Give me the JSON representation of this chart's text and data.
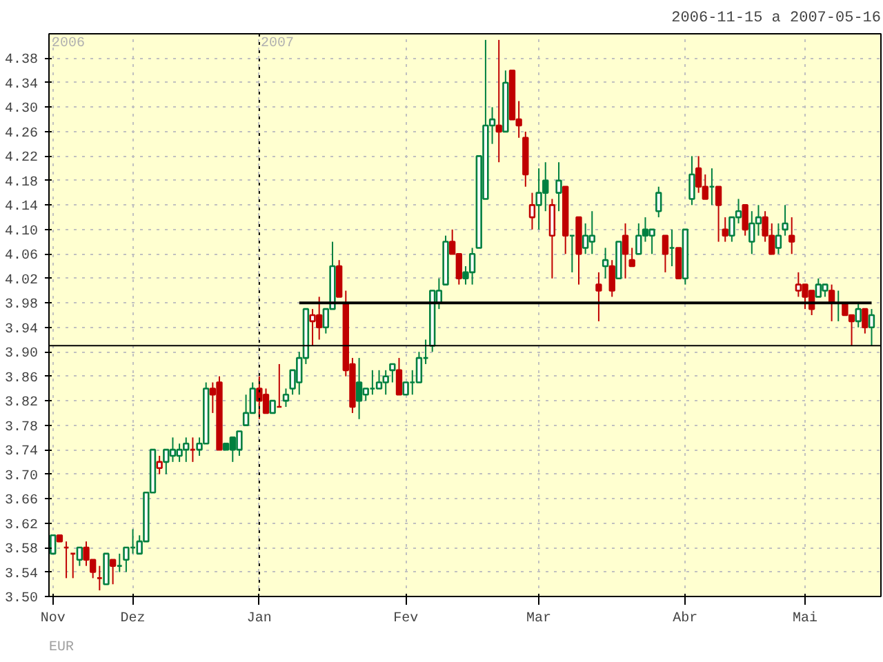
{
  "chart_data": {
    "type": "candlestick",
    "subtitle": "2006-11-15 a 2007-05-16",
    "categories": [
      "Nov",
      null,
      null,
      null,
      null,
      null,
      null,
      null,
      null,
      null,
      null,
      null,
      "Dez",
      null,
      null,
      null,
      null,
      null,
      null,
      null,
      null,
      null,
      null,
      null,
      null,
      null,
      null,
      null,
      null,
      null,
      null,
      "Jan",
      null,
      null,
      null,
      null,
      null,
      null,
      null,
      null,
      null,
      null,
      null,
      null,
      null,
      null,
      null,
      null,
      null,
      null,
      null,
      null,
      null,
      "Fev",
      null,
      null,
      null,
      null,
      null,
      null,
      null,
      null,
      null,
      null,
      null,
      null,
      null,
      null,
      null,
      null,
      null,
      null,
      null,
      "Mar",
      null,
      null,
      null,
      null,
      null,
      null,
      null,
      null,
      null,
      null,
      null,
      null,
      null,
      null,
      null,
      null,
      null,
      null,
      null,
      null,
      null,
      "Abr",
      null,
      null,
      null,
      null,
      null,
      null,
      null,
      null,
      null,
      null,
      null,
      null,
      null,
      null,
      null,
      null,
      null,
      "Mai",
      null,
      null,
      null,
      null,
      null,
      null,
      null,
      null,
      null,
      null
    ],
    "ohlc": [
      [
        3.57,
        3.6,
        3.57,
        3.6
      ],
      [
        3.6,
        3.6,
        3.59,
        3.59
      ],
      [
        3.58,
        3.59,
        3.53,
        3.58
      ],
      [
        3.57,
        3.57,
        3.53,
        3.57
      ],
      [
        3.56,
        3.58,
        3.55,
        3.58
      ],
      [
        3.58,
        3.59,
        3.55,
        3.56
      ],
      [
        3.56,
        3.56,
        3.53,
        3.54
      ],
      [
        3.53,
        3.55,
        3.51,
        3.53
      ],
      [
        3.52,
        3.57,
        3.52,
        3.57
      ],
      [
        3.56,
        3.56,
        3.52,
        3.55
      ],
      [
        3.55,
        3.57,
        3.54,
        3.55
      ],
      [
        3.56,
        3.58,
        3.54,
        3.58
      ],
      [
        3.58,
        3.61,
        3.57,
        3.58
      ],
      [
        3.57,
        3.6,
        3.57,
        3.59
      ],
      [
        3.59,
        3.67,
        3.59,
        3.67
      ],
      [
        3.67,
        3.74,
        3.67,
        3.74
      ],
      [
        3.71,
        3.73,
        3.7,
        3.72
      ],
      [
        3.72,
        3.74,
        3.7,
        3.74
      ],
      [
        3.73,
        3.76,
        3.72,
        3.74
      ],
      [
        3.73,
        3.75,
        3.72,
        3.74
      ],
      [
        3.74,
        3.76,
        3.72,
        3.75
      ],
      [
        3.74,
        3.76,
        3.72,
        3.74
      ],
      [
        3.74,
        3.76,
        3.73,
        3.75
      ],
      [
        3.75,
        3.85,
        3.75,
        3.84
      ],
      [
        3.84,
        3.85,
        3.8,
        3.83
      ],
      [
        3.85,
        3.86,
        3.74,
        3.74
      ],
      [
        3.75,
        3.75,
        3.74,
        3.74
      ],
      [
        3.76,
        3.76,
        3.72,
        3.74
      ],
      [
        3.74,
        3.77,
        3.73,
        3.77
      ],
      [
        3.78,
        3.83,
        3.78,
        3.8
      ],
      [
        3.8,
        3.85,
        3.8,
        3.84
      ],
      [
        3.84,
        3.86,
        3.79,
        3.82
      ],
      [
        3.83,
        3.84,
        3.8,
        3.8
      ],
      [
        3.8,
        3.82,
        3.8,
        3.82
      ],
      [
        3.81,
        3.88,
        3.81,
        3.81
      ],
      [
        3.82,
        3.84,
        3.81,
        3.83
      ],
      [
        3.84,
        3.87,
        3.83,
        3.87
      ],
      [
        3.85,
        3.9,
        3.83,
        3.89
      ],
      [
        3.89,
        3.97,
        3.88,
        3.97
      ],
      [
        3.95,
        3.97,
        3.91,
        3.96
      ],
      [
        3.96,
        3.99,
        3.92,
        3.94
      ],
      [
        3.94,
        3.97,
        3.93,
        3.97
      ],
      [
        3.97,
        4.08,
        3.97,
        4.04
      ],
      [
        4.04,
        4.05,
        3.99,
        3.99
      ],
      [
        3.98,
        4.0,
        3.86,
        3.87
      ],
      [
        3.88,
        3.89,
        3.8,
        3.81
      ],
      [
        3.85,
        3.89,
        3.79,
        3.82
      ],
      [
        3.83,
        3.84,
        3.82,
        3.84
      ],
      [
        3.84,
        3.87,
        3.83,
        3.84
      ],
      [
        3.84,
        3.87,
        3.84,
        3.85
      ],
      [
        3.85,
        3.87,
        3.83,
        3.86
      ],
      [
        3.87,
        3.88,
        3.85,
        3.88
      ],
      [
        3.87,
        3.89,
        3.83,
        3.83
      ],
      [
        3.83,
        3.85,
        3.83,
        3.85
      ],
      [
        3.85,
        3.87,
        3.83,
        3.85
      ],
      [
        3.85,
        3.9,
        3.85,
        3.89
      ],
      [
        3.89,
        3.92,
        3.88,
        3.89
      ],
      [
        3.91,
        4.0,
        3.9,
        4.0
      ],
      [
        3.98,
        4.02,
        3.97,
        4.0
      ],
      [
        4.01,
        4.09,
        4.01,
        4.08
      ],
      [
        4.08,
        4.1,
        4.06,
        4.06
      ],
      [
        4.06,
        4.06,
        4.01,
        4.02
      ],
      [
        4.03,
        4.04,
        4.01,
        4.02
      ],
      [
        4.03,
        4.07,
        4.01,
        4.06
      ],
      [
        4.07,
        4.22,
        4.07,
        4.22
      ],
      [
        4.15,
        4.41,
        4.15,
        4.27
      ],
      [
        4.27,
        4.3,
        4.24,
        4.28
      ],
      [
        4.27,
        4.41,
        4.21,
        4.26
      ],
      [
        4.26,
        4.36,
        4.26,
        4.34
      ],
      [
        4.36,
        4.36,
        4.28,
        4.28
      ],
      [
        4.28,
        4.31,
        4.25,
        4.27
      ],
      [
        4.25,
        4.26,
        4.17,
        4.19
      ],
      [
        4.12,
        4.16,
        4.1,
        4.14
      ],
      [
        4.14,
        4.2,
        4.1,
        4.16
      ],
      [
        4.18,
        4.21,
        4.13,
        4.16
      ],
      [
        4.09,
        4.15,
        4.02,
        4.14
      ],
      [
        4.16,
        4.21,
        4.13,
        4.18
      ],
      [
        4.17,
        4.17,
        4.06,
        4.09
      ],
      [
        4.09,
        4.09,
        4.03,
        4.09
      ],
      [
        4.12,
        4.12,
        4.01,
        4.06
      ],
      [
        4.07,
        4.11,
        4.06,
        4.09
      ],
      [
        4.08,
        4.13,
        4.06,
        4.09
      ],
      [
        4.01,
        4.03,
        3.95,
        4.0
      ],
      [
        4.04,
        4.07,
        4.02,
        4.05
      ],
      [
        4.04,
        4.05,
        3.99,
        4.0
      ],
      [
        4.02,
        4.08,
        4.02,
        4.08
      ],
      [
        4.09,
        4.11,
        4.02,
        4.06
      ],
      [
        4.05,
        4.07,
        4.04,
        4.04
      ],
      [
        4.06,
        4.11,
        4.06,
        4.09
      ],
      [
        4.1,
        4.12,
        4.08,
        4.09
      ],
      [
        4.09,
        4.1,
        4.06,
        4.1
      ],
      [
        4.13,
        4.17,
        4.12,
        4.16
      ],
      [
        4.09,
        4.09,
        4.03,
        4.06
      ],
      [
        4.07,
        4.1,
        4.04,
        4.07
      ],
      [
        4.07,
        4.07,
        4.02,
        4.02
      ],
      [
        4.02,
        4.1,
        4.01,
        4.1
      ],
      [
        4.15,
        4.22,
        4.14,
        4.19
      ],
      [
        4.2,
        4.22,
        4.16,
        4.17
      ],
      [
        4.17,
        4.19,
        4.15,
        4.15
      ],
      [
        4.17,
        4.2,
        4.14,
        4.17
      ],
      [
        4.17,
        4.17,
        4.08,
        4.14
      ],
      [
        4.1,
        4.12,
        4.08,
        4.09
      ],
      [
        4.09,
        4.12,
        4.08,
        4.12
      ],
      [
        4.12,
        4.15,
        4.11,
        4.13
      ],
      [
        4.14,
        4.14,
        4.09,
        4.1
      ],
      [
        4.08,
        4.13,
        4.06,
        4.11
      ],
      [
        4.11,
        4.14,
        4.09,
        4.12
      ],
      [
        4.12,
        4.13,
        4.08,
        4.09
      ],
      [
        4.09,
        4.11,
        4.06,
        4.06
      ],
      [
        4.07,
        4.11,
        4.06,
        4.09
      ],
      [
        4.1,
        4.14,
        4.09,
        4.11
      ],
      [
        4.09,
        4.12,
        4.06,
        4.08
      ],
      [
        4.0,
        4.03,
        3.99,
        4.01
      ],
      [
        4.01,
        4.01,
        3.97,
        3.99
      ],
      [
        4.0,
        4.0,
        3.96,
        3.97
      ],
      [
        3.99,
        4.02,
        3.99,
        4.01
      ],
      [
        4.0,
        4.01,
        3.99,
        4.01
      ],
      [
        4.0,
        4.01,
        3.95,
        3.98
      ],
      [
        3.98,
        4.0,
        3.95,
        3.98
      ],
      [
        3.98,
        3.98,
        3.96,
        3.96
      ],
      [
        3.96,
        3.96,
        3.91,
        3.95
      ],
      [
        3.95,
        3.98,
        3.94,
        3.97
      ],
      [
        3.97,
        3.97,
        3.93,
        3.94
      ],
      [
        3.94,
        3.97,
        3.91,
        3.96
      ]
    ],
    "colors": [
      "#008040",
      "#c00000",
      "#c00000",
      "#c00000",
      "#008040",
      "#c00000",
      "#c00000",
      "#c00000",
      "#008040",
      "#c00000",
      "#008040",
      "#008040",
      "#008040",
      "#008040",
      "#008040",
      "#008040",
      "#c00000",
      "#008040",
      "#008040",
      "#008040",
      "#008040",
      "#c00000",
      "#008040",
      "#008040",
      "#c00000",
      "#c00000",
      "#008040",
      "#008040",
      "#008040",
      "#008040",
      "#008040",
      "#c00000",
      "#c00000",
      "#008040",
      "#c00000",
      "#008040",
      "#008040",
      "#008040",
      "#008040",
      "#c00000",
      "#c00000",
      "#008040",
      "#008040",
      "#c00000",
      "#c00000",
      "#c00000",
      "#008040",
      "#008040",
      "#008040",
      "#008040",
      "#008040",
      "#008040",
      "#c00000",
      "#008040",
      "#008040",
      "#008040",
      "#008040",
      "#008040",
      "#008040",
      "#008040",
      "#c00000",
      "#c00000",
      "#008040",
      "#008040",
      "#008040",
      "#008040",
      "#008040",
      "#c00000",
      "#008040",
      "#c00000",
      "#c00000",
      "#c00000",
      "#c00000",
      "#008040",
      "#008040",
      "#c00000",
      "#008040",
      "#c00000",
      "#008040",
      "#c00000",
      "#008040",
      "#008040",
      "#c00000",
      "#008040",
      "#c00000",
      "#008040",
      "#c00000",
      "#c00000",
      "#008040",
      "#008040",
      "#008040",
      "#008040",
      "#c00000",
      "#008040",
      "#c00000",
      "#008040",
      "#008040",
      "#c00000",
      "#c00000",
      "#008040",
      "#c00000",
      "#c00000",
      "#008040",
      "#008040",
      "#c00000",
      "#008040",
      "#008040",
      "#c00000",
      "#c00000",
      "#008040",
      "#008040",
      "#c00000",
      "#c00000",
      "#c00000",
      "#c00000",
      "#008040",
      "#008040",
      "#c00000",
      "#008040",
      "#c00000",
      "#c00000",
      "#008040",
      "#c00000",
      "#008040"
    ],
    "series": [
      {
        "type": "line",
        "color": "#000000",
        "values": [
          null,
          null,
          null,
          null,
          null,
          null,
          null,
          null,
          null,
          null,
          null,
          null,
          null,
          null,
          null,
          null,
          null,
          null,
          null,
          null,
          null,
          null,
          null,
          null,
          null,
          null,
          null,
          null,
          null,
          null,
          null,
          null,
          null,
          null,
          null,
          null,
          null,
          3.98,
          3.98,
          3.98,
          3.98,
          3.98,
          3.98,
          3.98,
          3.98,
          3.98,
          3.98,
          3.98,
          3.98,
          3.98,
          3.98,
          3.98,
          3.98,
          3.98,
          3.98,
          3.98,
          3.98,
          3.98,
          3.98,
          3.98,
          3.98,
          3.98,
          3.98,
          3.98,
          3.98,
          3.98,
          3.98,
          3.98,
          3.98,
          3.98,
          3.98,
          3.98,
          3.98,
          3.98,
          3.98,
          3.98,
          3.98,
          3.98,
          3.98,
          3.98,
          3.98,
          3.98,
          3.98,
          3.98,
          3.98,
          3.98,
          3.98,
          3.98,
          3.98,
          3.98,
          3.98,
          3.98,
          3.98,
          3.98,
          3.98,
          3.98,
          3.98,
          3.98,
          3.98,
          3.98,
          3.98,
          3.98,
          3.98,
          3.98,
          3.98,
          3.98,
          3.98,
          3.98,
          3.98,
          3.98,
          3.98,
          3.98,
          3.98,
          3.98,
          3.98,
          3.98,
          3.98,
          3.98,
          3.98,
          3.98,
          3.98,
          3.98,
          3.98,
          3.98
        ]
      }
    ],
    "ylim": [
      3.5,
      4.42
    ],
    "yticks": [
      {
        "value": 3.5,
        "label": "3.50"
      },
      3.54,
      3.58,
      3.62,
      3.66,
      {
        "value": 3.7,
        "label": "3.70"
      },
      3.74,
      3.78,
      3.82,
      3.86,
      {
        "value": 3.9,
        "label": "3.90"
      },
      3.94,
      3.98,
      4.02,
      4.06,
      {
        "value": 4.1,
        "label": "4.10"
      },
      4.14,
      4.18,
      4.22,
      4.26,
      {
        "value": 4.3,
        "label": "4.30"
      },
      4.34,
      4.38
    ],
    "grid": true,
    "ref_lines": [
      {
        "axis": "x",
        "value": "Jan",
        "color": "#000000",
        "line_style": "dotted",
        "label": "2007"
      },
      {
        "axis": "y",
        "value": 3.91,
        "color": "#000000",
        "line_style": "solid"
      }
    ],
    "annotations": [
      "2006",
      "EUR"
    ]
  }
}
